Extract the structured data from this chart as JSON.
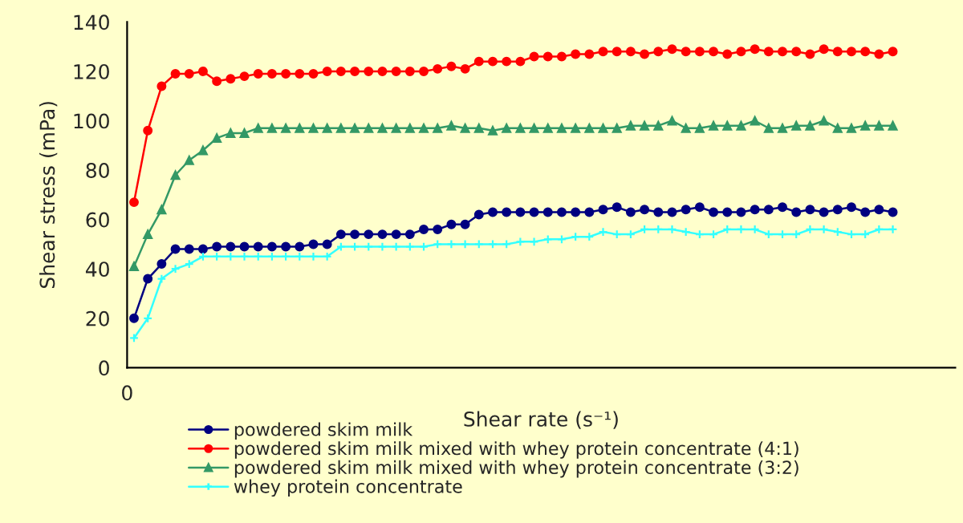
{
  "chart_data": {
    "type": "line",
    "xlabel": "Shear rate (s⁻¹)",
    "ylabel": "Shear stress (mPa)",
    "categories": [
      null,
      null,
      null,
      null,
      null,
      null,
      null,
      null,
      null,
      null,
      null,
      null,
      null,
      null,
      null,
      null,
      null,
      null,
      null,
      null,
      null,
      null,
      null,
      null,
      null,
      null,
      null,
      null,
      null,
      null,
      null,
      null,
      null,
      null,
      null,
      null,
      null,
      null,
      null,
      null,
      null,
      null,
      null,
      null,
      null,
      null,
      null,
      null,
      null,
      null,
      null,
      null,
      null,
      null,
      null,
      null
    ],
    "annotations": [
      "0"
    ],
    "ylim": [
      0,
      140
    ],
    "yticks": [
      0,
      20,
      40,
      60,
      80,
      100,
      120,
      140
    ],
    "grid": false,
    "legend": "bottom",
    "line_style": "solid",
    "series": [
      {
        "name": "powdered skim milk",
        "color": "#000080",
        "marker": "circle",
        "values": [
          20,
          36,
          42,
          48,
          48,
          48,
          49,
          49,
          49,
          49,
          49,
          49,
          49,
          50,
          50,
          54,
          54,
          54,
          54,
          54,
          54,
          56,
          56,
          58,
          58,
          62,
          63,
          63,
          63,
          63,
          63,
          63,
          63,
          63,
          64,
          65,
          63,
          64,
          63,
          63,
          64,
          65,
          63,
          63,
          63,
          64,
          64,
          65,
          63,
          64,
          63,
          64,
          65,
          63,
          64,
          63
        ]
      },
      {
        "name": "powdered skim milk mixed with whey protein concentrate (4:1)",
        "color": "#ff0000",
        "marker": "circle",
        "values": [
          67,
          96,
          114,
          119,
          119,
          120,
          116,
          117,
          118,
          119,
          119,
          119,
          119,
          119,
          120,
          120,
          120,
          120,
          120,
          120,
          120,
          120,
          121,
          122,
          121,
          124,
          124,
          124,
          124,
          126,
          126,
          126,
          127,
          127,
          128,
          128,
          128,
          127,
          128,
          129,
          128,
          128,
          128,
          127,
          128,
          129,
          128,
          128,
          128,
          127,
          129,
          128,
          128,
          128,
          127,
          128
        ]
      },
      {
        "name": "powdered skim milk mixed with whey protein concentrate (3:2)",
        "color": "#339966",
        "marker": "triangle",
        "values": [
          41,
          54,
          64,
          78,
          84,
          88,
          93,
          95,
          95,
          97,
          97,
          97,
          97,
          97,
          97,
          97,
          97,
          97,
          97,
          97,
          97,
          97,
          97,
          98,
          97,
          97,
          96,
          97,
          97,
          97,
          97,
          97,
          97,
          97,
          97,
          97,
          98,
          98,
          98,
          100,
          97,
          97,
          98,
          98,
          98,
          100,
          97,
          97,
          98,
          98,
          100,
          97,
          97,
          98,
          98,
          98
        ]
      },
      {
        "name": "whey protein concentrate",
        "color": "#33ffff",
        "marker": "cross",
        "values": [
          12,
          20,
          36,
          40,
          42,
          45,
          45,
          45,
          45,
          45,
          45,
          45,
          45,
          45,
          45,
          49,
          49,
          49,
          49,
          49,
          49,
          49,
          50,
          50,
          50,
          50,
          50,
          50,
          51,
          51,
          52,
          52,
          53,
          53,
          55,
          54,
          54,
          56,
          56,
          56,
          55,
          54,
          54,
          56,
          56,
          56,
          54,
          54,
          54,
          56,
          56,
          55,
          54,
          54,
          56,
          56
        ]
      }
    ]
  }
}
